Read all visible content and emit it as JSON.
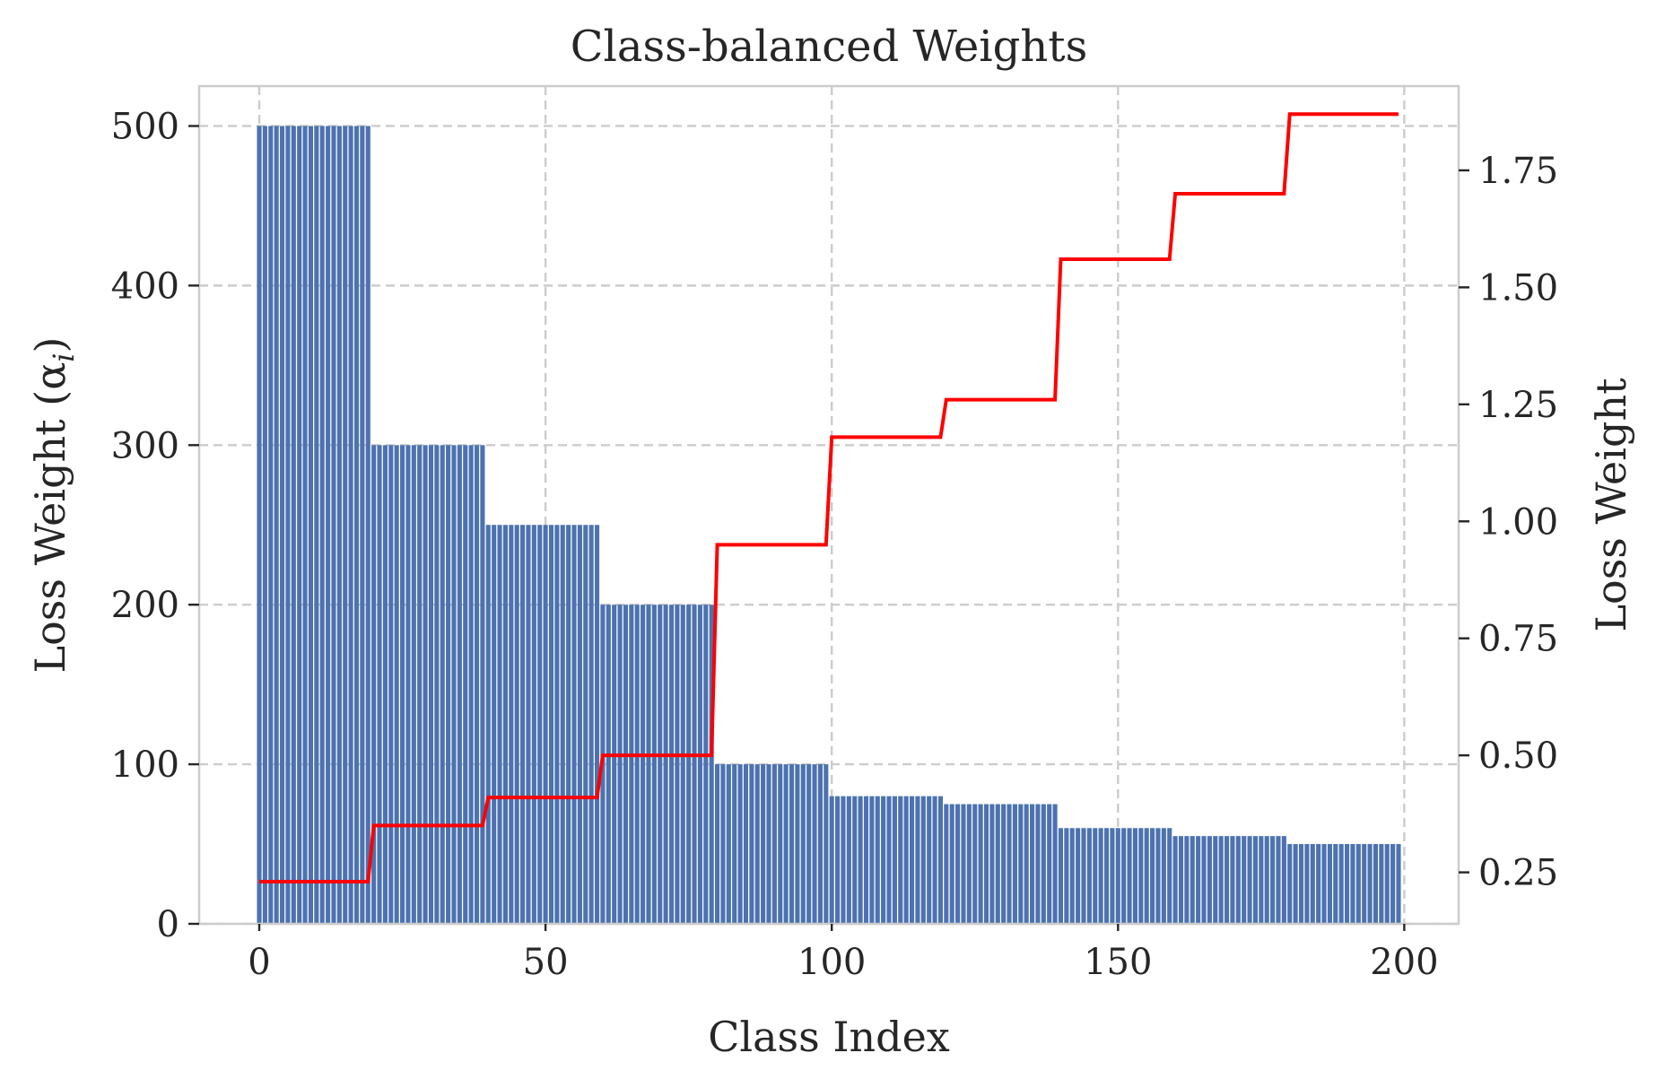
{
  "chart_data": {
    "type": "bar",
    "title": "Class-balanced Weights",
    "xlabel": "Class Index",
    "ylabel_left": "Loss Weight (α",
    "ylabel_left_subscript": "i",
    "ylabel_left_close": ")",
    "ylabel_right": "Loss Weight",
    "xlim": [
      -10.5,
      209.5
    ],
    "ylim_left": [
      0,
      525
    ],
    "ylim_right": [
      0.14,
      1.93
    ],
    "x_ticks": [
      0,
      50,
      100,
      150,
      200
    ],
    "y_left_ticks": [
      0,
      100,
      200,
      300,
      400,
      500
    ],
    "y_right_ticks": [
      0.25,
      0.5,
      0.75,
      1.0,
      1.25,
      1.5,
      1.75
    ],
    "x_tick_labels": [
      "0",
      "50",
      "100",
      "150",
      "200"
    ],
    "y_left_tick_labels": [
      "0",
      "100",
      "200",
      "300",
      "400",
      "500"
    ],
    "y_right_tick_labels": [
      "0.25",
      "0.50",
      "0.75",
      "1.00",
      "1.25",
      "1.50",
      "1.75"
    ],
    "grid": true,
    "series": [
      {
        "axis": "left",
        "kind": "bar",
        "color": "#4c72b0",
        "group_size": 20,
        "group_values": [
          500,
          300,
          250,
          200,
          100,
          80,
          75,
          60,
          55,
          50
        ]
      },
      {
        "axis": "right",
        "kind": "step",
        "color": "#ff0000",
        "group_size": 20,
        "group_values": [
          0.23,
          0.35,
          0.41,
          0.5,
          0.95,
          1.18,
          1.26,
          1.56,
          1.7,
          1.87
        ]
      }
    ]
  }
}
